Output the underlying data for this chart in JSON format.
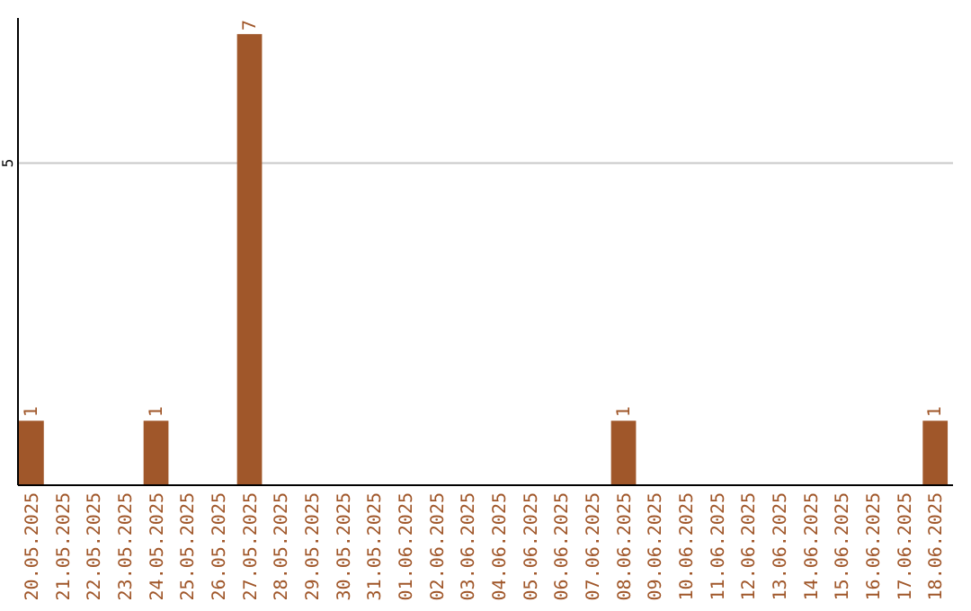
{
  "chart_data": {
    "type": "bar",
    "categories": [
      "20.05.2025",
      "21.05.2025",
      "22.05.2025",
      "23.05.2025",
      "24.05.2025",
      "25.05.2025",
      "26.05.2025",
      "27.05.2025",
      "28.05.2025",
      "29.05.2025",
      "30.05.2025",
      "31.05.2025",
      "01.06.2025",
      "02.06.2025",
      "03.06.2025",
      "04.06.2025",
      "05.06.2025",
      "06.06.2025",
      "07.06.2025",
      "08.06.2025",
      "09.06.2025",
      "10.06.2025",
      "11.06.2025",
      "12.06.2025",
      "13.06.2025",
      "14.06.2025",
      "15.06.2025",
      "16.06.2025",
      "17.06.2025",
      "18.06.2025"
    ],
    "values": [
      1,
      0,
      0,
      0,
      1,
      0,
      0,
      7,
      0,
      0,
      0,
      0,
      0,
      0,
      0,
      0,
      0,
      0,
      0,
      1,
      0,
      0,
      0,
      0,
      0,
      0,
      0,
      0,
      0,
      1
    ],
    "value_labels": [
      "1",
      null,
      null,
      null,
      "1",
      null,
      null,
      "7",
      null,
      null,
      null,
      null,
      null,
      null,
      null,
      null,
      null,
      null,
      null,
      "1",
      null,
      null,
      null,
      null,
      null,
      null,
      null,
      null,
      null,
      "1"
    ],
    "color": "#a0572a",
    "ylim": [
      0,
      7.25
    ],
    "yticks": [
      5
    ],
    "grid": "y"
  }
}
